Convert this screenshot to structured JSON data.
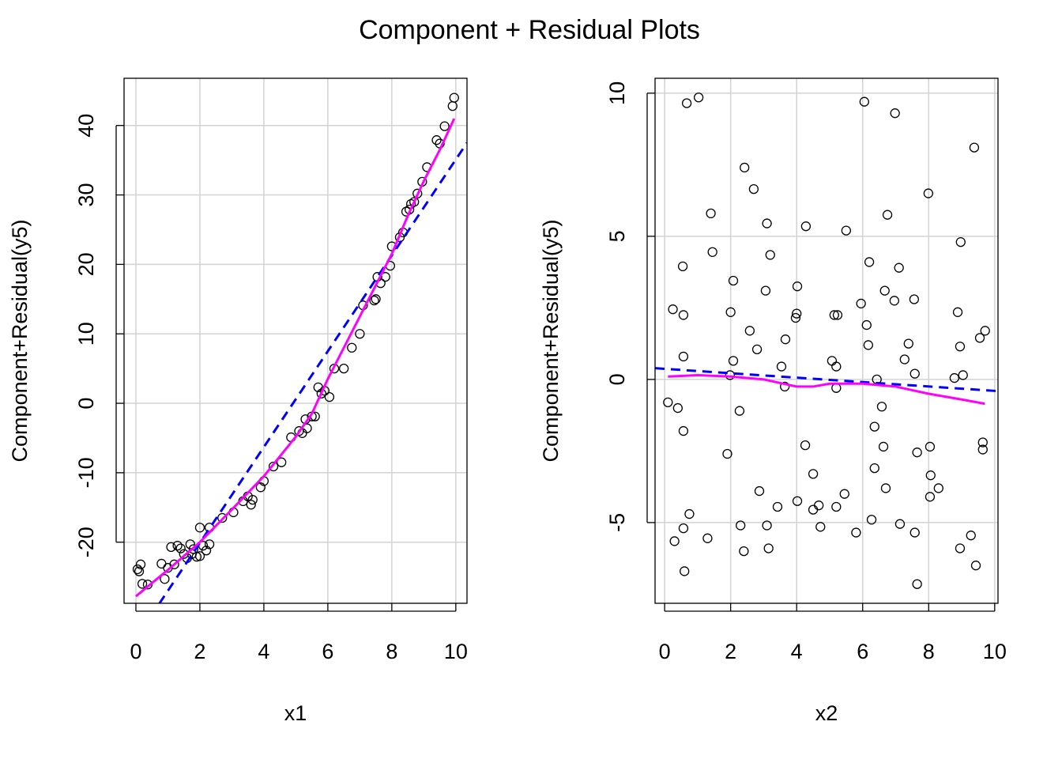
{
  "title": "Component + Residual Plots",
  "colors": {
    "points": "#000000",
    "fit_line": "#0000ff",
    "smooth_line": "#ff00ff",
    "grid": "#d3d3d3"
  },
  "chart_data": [
    {
      "type": "scatter",
      "xlabel": "x1",
      "ylabel": "Component+Residual(y5)",
      "xlim": [
        -0.37,
        10.35
      ],
      "ylim": [
        -28.8,
        46.8
      ],
      "xticks": [
        0,
        2,
        4,
        6,
        8,
        10
      ],
      "yticks": [
        -20,
        -10,
        0,
        10,
        20,
        30,
        40
      ],
      "grid": true,
      "points": [
        [
          0.05,
          -23.9
        ],
        [
          0.1,
          -24.2
        ],
        [
          0.15,
          -23.2
        ],
        [
          0.2,
          -26
        ],
        [
          0.37,
          -26.1
        ],
        [
          0.8,
          -23.1
        ],
        [
          0.9,
          -25.3
        ],
        [
          1.0,
          -23.7
        ],
        [
          1.1,
          -20.7
        ],
        [
          1.2,
          -23.2
        ],
        [
          1.3,
          -20.5
        ],
        [
          1.4,
          -20.9
        ],
        [
          1.5,
          -21.7
        ],
        [
          1.6,
          -22.3
        ],
        [
          1.7,
          -20.3
        ],
        [
          1.75,
          -21.7
        ],
        [
          1.8,
          -21
        ],
        [
          1.9,
          -22.1
        ],
        [
          2.0,
          -17.9
        ],
        [
          2.0,
          -22
        ],
        [
          2.1,
          -20.5
        ],
        [
          2.2,
          -21.2
        ],
        [
          2.3,
          -20.3
        ],
        [
          2.3,
          -17.9
        ],
        [
          2.7,
          -16.5
        ],
        [
          3.05,
          -15.7
        ],
        [
          3.35,
          -14.1
        ],
        [
          3.5,
          -13.4
        ],
        [
          3.6,
          -14.6
        ],
        [
          3.65,
          -13.9
        ],
        [
          3.9,
          -12.1
        ],
        [
          4.0,
          -11.2
        ],
        [
          4.3,
          -9.1
        ],
        [
          4.55,
          -8.5
        ],
        [
          4.85,
          -4.9
        ],
        [
          5.1,
          -4
        ],
        [
          5.2,
          -4.3
        ],
        [
          5.3,
          -2.3
        ],
        [
          5.35,
          -3.6
        ],
        [
          5.5,
          -1.9
        ],
        [
          5.6,
          -1.9
        ],
        [
          5.7,
          2.3
        ],
        [
          5.8,
          1.4
        ],
        [
          5.9,
          1.8
        ],
        [
          6.05,
          0.9
        ],
        [
          6.2,
          5
        ],
        [
          6.5,
          5
        ],
        [
          6.75,
          8
        ],
        [
          7.0,
          10
        ],
        [
          7.1,
          14.1
        ],
        [
          7.45,
          14.8
        ],
        [
          7.5,
          15
        ],
        [
          7.55,
          18.2
        ],
        [
          7.65,
          17.3
        ],
        [
          7.8,
          18.2
        ],
        [
          7.95,
          19.8
        ],
        [
          8.0,
          22.6
        ],
        [
          8.25,
          23.9
        ],
        [
          8.35,
          24.6
        ],
        [
          8.45,
          27.6
        ],
        [
          8.55,
          27.9
        ],
        [
          8.6,
          28.7
        ],
        [
          8.7,
          29
        ],
        [
          8.8,
          30.2
        ],
        [
          8.95,
          31.9
        ],
        [
          9.1,
          34
        ],
        [
          9.4,
          37.9
        ],
        [
          9.5,
          37.4
        ],
        [
          9.65,
          39.9
        ],
        [
          9.9,
          42.8
        ],
        [
          9.95,
          44
        ]
      ],
      "fit_line": {
        "intercept": -33.9,
        "slope": 6.9
      },
      "smooth": [
        [
          0,
          -27.8
        ],
        [
          1,
          -24
        ],
        [
          2,
          -20
        ],
        [
          3,
          -15.3
        ],
        [
          4,
          -10.5
        ],
        [
          5,
          -4.8
        ],
        [
          5.5,
          -1.5
        ],
        [
          6,
          3.5
        ],
        [
          6.5,
          8
        ],
        [
          7,
          12.5
        ],
        [
          7.5,
          17
        ],
        [
          8,
          21.5
        ],
        [
          8.5,
          27
        ],
        [
          9,
          32
        ],
        [
          9.5,
          36.5
        ],
        [
          9.95,
          41
        ]
      ]
    },
    {
      "type": "scatter",
      "xlabel": "x2",
      "ylabel": "Component+Residual(y5)",
      "xlim": [
        -0.29,
        10.1
      ],
      "ylim": [
        -7.82,
        10.52
      ],
      "xticks": [
        0,
        2,
        4,
        6,
        8,
        10
      ],
      "yticks": [
        -5,
        0,
        5,
        10
      ],
      "grid": true,
      "points": [
        [
          0.1,
          -0.8
        ],
        [
          0.25,
          2.45
        ],
        [
          0.3,
          -5.65
        ],
        [
          0.4,
          -1
        ],
        [
          0.55,
          3.95
        ],
        [
          0.57,
          2.25
        ],
        [
          0.57,
          0.8
        ],
        [
          0.57,
          -1.8
        ],
        [
          0.57,
          -5.2
        ],
        [
          0.6,
          -6.7
        ],
        [
          0.67,
          9.65
        ],
        [
          0.75,
          -4.7
        ],
        [
          1.03,
          9.85
        ],
        [
          1.3,
          -5.55
        ],
        [
          1.4,
          5.8
        ],
        [
          1.45,
          4.45
        ],
        [
          1.9,
          -2.6
        ],
        [
          1.98,
          0.15
        ],
        [
          2.0,
          2.35
        ],
        [
          2.08,
          3.45
        ],
        [
          2.08,
          0.65
        ],
        [
          2.27,
          -1.1
        ],
        [
          2.3,
          -5.1
        ],
        [
          2.4,
          -6.0
        ],
        [
          2.42,
          7.4
        ],
        [
          2.58,
          1.7
        ],
        [
          2.7,
          6.65
        ],
        [
          2.8,
          1.05
        ],
        [
          2.87,
          -3.9
        ],
        [
          3.06,
          3.1
        ],
        [
          3.1,
          5.45
        ],
        [
          3.1,
          -5.1
        ],
        [
          3.15,
          -5.9
        ],
        [
          3.2,
          4.35
        ],
        [
          3.42,
          -4.45
        ],
        [
          3.54,
          0.45
        ],
        [
          3.64,
          -0.25
        ],
        [
          3.66,
          1.4
        ],
        [
          3.97,
          2.15
        ],
        [
          4.0,
          2.3
        ],
        [
          4.02,
          3.25
        ],
        [
          4.02,
          -4.25
        ],
        [
          4.26,
          -2.3
        ],
        [
          4.28,
          5.35
        ],
        [
          4.5,
          -3.3
        ],
        [
          4.5,
          -4.55
        ],
        [
          4.67,
          -4.4
        ],
        [
          4.72,
          -5.15
        ],
        [
          5.07,
          0.65
        ],
        [
          5.14,
          2.25
        ],
        [
          5.2,
          0.45
        ],
        [
          5.2,
          -0.3
        ],
        [
          5.24,
          2.25
        ],
        [
          5.2,
          -4.45
        ],
        [
          5.45,
          -4.0
        ],
        [
          5.5,
          5.2
        ],
        [
          5.8,
          -5.35
        ],
        [
          5.95,
          2.65
        ],
        [
          6.05,
          9.7
        ],
        [
          6.12,
          1.9
        ],
        [
          6.17,
          1.2
        ],
        [
          6.2,
          4.1
        ],
        [
          6.27,
          -4.9
        ],
        [
          6.36,
          -3.1
        ],
        [
          6.36,
          -1.65
        ],
        [
          6.43,
          0
        ],
        [
          6.58,
          -0.95
        ],
        [
          6.63,
          -2.35
        ],
        [
          6.67,
          3.1
        ],
        [
          6.7,
          -3.8
        ],
        [
          6.75,
          5.75
        ],
        [
          6.96,
          2.75
        ],
        [
          6.98,
          9.3
        ],
        [
          7.1,
          3.9
        ],
        [
          7.13,
          -5.05
        ],
        [
          7.27,
          0.7
        ],
        [
          7.39,
          1.25
        ],
        [
          7.56,
          2.8
        ],
        [
          7.58,
          0.2
        ],
        [
          7.58,
          -5.35
        ],
        [
          7.65,
          -2.55
        ],
        [
          7.65,
          -7.15
        ],
        [
          7.99,
          6.5
        ],
        [
          8.04,
          -2.35
        ],
        [
          8.04,
          -4.1
        ],
        [
          8.06,
          -3.35
        ],
        [
          8.3,
          -3.8
        ],
        [
          8.78,
          0.05
        ],
        [
          8.88,
          2.35
        ],
        [
          8.95,
          -5.9
        ],
        [
          8.97,
          4.8
        ],
        [
          8.95,
          1.15
        ],
        [
          9.04,
          0.15
        ],
        [
          9.28,
          -5.45
        ],
        [
          9.38,
          8.1
        ],
        [
          9.43,
          -6.5
        ],
        [
          9.55,
          1.45
        ],
        [
          9.64,
          -2.2
        ],
        [
          9.64,
          -2.45
        ],
        [
          9.71,
          1.7
        ]
      ],
      "fit_line": {
        "intercept": 0.37,
        "slope": -0.077
      },
      "smooth": [
        [
          0.1,
          0.1
        ],
        [
          1,
          0.15
        ],
        [
          2,
          0.1
        ],
        [
          3,
          0
        ],
        [
          4,
          -0.25
        ],
        [
          4.5,
          -0.25
        ],
        [
          5,
          -0.15
        ],
        [
          6,
          -0.15
        ],
        [
          7,
          -0.25
        ],
        [
          8,
          -0.5
        ],
        [
          9,
          -0.7
        ],
        [
          9.7,
          -0.85
        ]
      ]
    }
  ]
}
